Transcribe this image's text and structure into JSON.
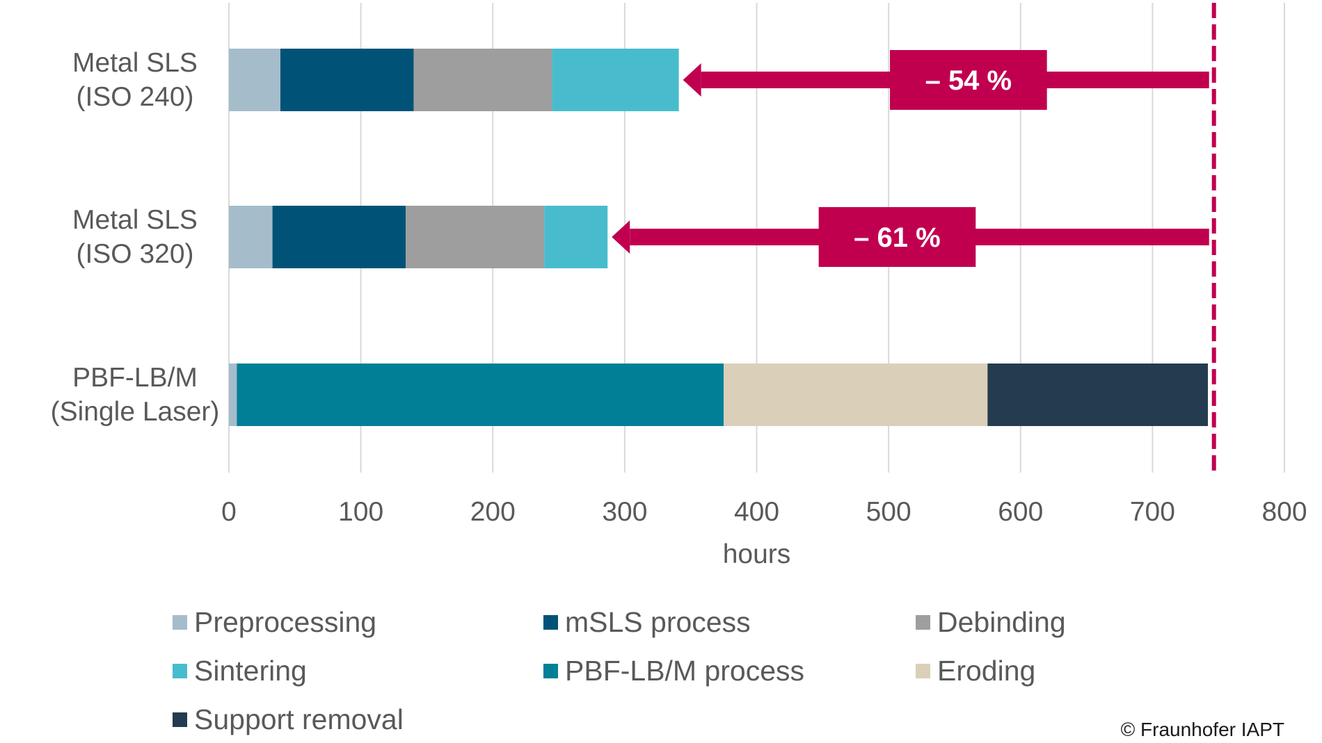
{
  "chart_data": {
    "type": "bar",
    "orientation": "horizontal",
    "stacked": true,
    "categories": [
      "Metal SLS\n(ISO 240)",
      "Metal SLS\n(ISO 320)",
      "PBF-LB/M\n(Single Laser)"
    ],
    "series": [
      {
        "name": "Preprocessing",
        "color": "#a5bccb",
        "values": [
          39,
          33,
          6
        ]
      },
      {
        "name": "mSLS process",
        "color": "#005376",
        "values": [
          101,
          101,
          0
        ]
      },
      {
        "name": "Debinding",
        "color": "#9e9e9e",
        "values": [
          105,
          105,
          0
        ]
      },
      {
        "name": "Sintering",
        "color": "#48bccd",
        "values": [
          96,
          48,
          0
        ]
      },
      {
        "name": "PBF-LB/M process",
        "color": "#007f97",
        "values": [
          0,
          0,
          369
        ]
      },
      {
        "name": "Eroding",
        "color": "#dacfb8",
        "values": [
          0,
          0,
          200
        ]
      },
      {
        "name": "Support removal",
        "color": "#243b50",
        "values": [
          0,
          0,
          167
        ]
      }
    ],
    "xlabel": "hours",
    "ylabel": "",
    "xlim": [
      0,
      800
    ],
    "xticks": [
      "0",
      "100",
      "200",
      "300",
      "400",
      "500",
      "600",
      "700",
      "800"
    ],
    "grid": "vertical",
    "legend_position": "bottom",
    "reference_line": {
      "value": 745,
      "style": "dashed",
      "color": "#c0004f"
    },
    "annotations": [
      {
        "category_index": 0,
        "label": "– 54 %",
        "arrow_from": 745,
        "arrow_to": 341,
        "box_from": 501,
        "box_to": 620
      },
      {
        "category_index": 1,
        "label": "– 61 %",
        "arrow_from": 745,
        "arrow_to": 287,
        "box_from": 447,
        "box_to": 566
      }
    ],
    "annotation_color": "#c0004f"
  },
  "copyright": "© Fraunhofer IAPT"
}
